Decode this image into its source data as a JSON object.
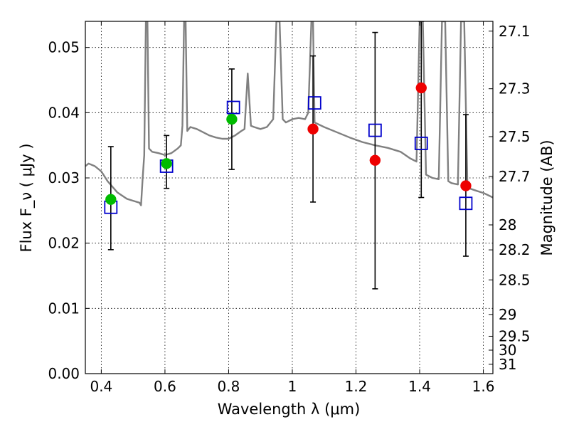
{
  "chart_data": {
    "type": "scatter",
    "xlabel": "Wavelength  λ (μm)",
    "ylabel": "Flux  F_ν  ( μJy )",
    "ylabel_right": "Magnitude (AB)",
    "xlim": [
      0.35,
      1.63
    ],
    "ylim": [
      0.0,
      0.054
    ],
    "grid": true,
    "x_ticks": [
      {
        "v": 0.4,
        "label": "0.4"
      },
      {
        "v": 0.6,
        "label": "0.6"
      },
      {
        "v": 0.8,
        "label": "0.8"
      },
      {
        "v": 1.0,
        "label": "1"
      },
      {
        "v": 1.2,
        "label": "1.2"
      },
      {
        "v": 1.4,
        "label": "1.4"
      },
      {
        "v": 1.6,
        "label": "1.6"
      }
    ],
    "y_ticks": [
      {
        "v": 0.0,
        "label": "0.00"
      },
      {
        "v": 0.01,
        "label": "0.01"
      },
      {
        "v": 0.02,
        "label": "0.02"
      },
      {
        "v": 0.03,
        "label": "0.03"
      },
      {
        "v": 0.04,
        "label": "0.04"
      },
      {
        "v": 0.05,
        "label": "0.05"
      }
    ],
    "right_ticks": [
      {
        "flux": 0.0525,
        "label": "27.1"
      },
      {
        "flux": 0.04367,
        "label": "27.3"
      },
      {
        "flux": 0.03633,
        "label": "27.5"
      },
      {
        "flux": 0.03022,
        "label": "27.7"
      },
      {
        "flux": 0.0228,
        "label": "28"
      },
      {
        "flux": 0.01897,
        "label": "28.2"
      },
      {
        "flux": 0.01437,
        "label": "28.5"
      },
      {
        "flux": 0.00907,
        "label": "29"
      },
      {
        "flux": 0.00573,
        "label": "29.5"
      },
      {
        "flux": 0.0036,
        "label": "30"
      },
      {
        "flux": 0.00143,
        "label": "31"
      }
    ],
    "model_spectrum": {
      "color": "#808080",
      "points": [
        [
          0.35,
          0.0318
        ],
        [
          0.36,
          0.0322
        ],
        [
          0.38,
          0.0318
        ],
        [
          0.4,
          0.031
        ],
        [
          0.42,
          0.0295
        ],
        [
          0.45,
          0.0278
        ],
        [
          0.48,
          0.0268
        ],
        [
          0.5,
          0.0265
        ],
        [
          0.52,
          0.0262
        ],
        [
          0.525,
          0.0258
        ],
        [
          0.53,
          0.03
        ],
        [
          0.535,
          0.0335
        ],
        [
          0.54,
          0.054
        ],
        [
          0.545,
          0.054
        ],
        [
          0.55,
          0.0345
        ],
        [
          0.56,
          0.034
        ],
        [
          0.58,
          0.0338
        ],
        [
          0.6,
          0.0335
        ],
        [
          0.62,
          0.0338
        ],
        [
          0.64,
          0.0345
        ],
        [
          0.65,
          0.035
        ],
        [
          0.655,
          0.038
        ],
        [
          0.66,
          0.054
        ],
        [
          0.665,
          0.054
        ],
        [
          0.67,
          0.0372
        ],
        [
          0.68,
          0.0378
        ],
        [
          0.7,
          0.0375
        ],
        [
          0.72,
          0.037
        ],
        [
          0.74,
          0.0365
        ],
        [
          0.76,
          0.0362
        ],
        [
          0.78,
          0.036
        ],
        [
          0.8,
          0.036
        ],
        [
          0.82,
          0.0365
        ],
        [
          0.84,
          0.0372
        ],
        [
          0.85,
          0.0375
        ],
        [
          0.86,
          0.046
        ],
        [
          0.87,
          0.038
        ],
        [
          0.88,
          0.0378
        ],
        [
          0.9,
          0.0375
        ],
        [
          0.92,
          0.0378
        ],
        [
          0.94,
          0.039
        ],
        [
          0.95,
          0.054
        ],
        [
          0.96,
          0.054
        ],
        [
          0.97,
          0.039
        ],
        [
          0.98,
          0.0385
        ],
        [
          1.0,
          0.039
        ],
        [
          1.02,
          0.0392
        ],
        [
          1.04,
          0.039
        ],
        [
          1.05,
          0.04
        ],
        [
          1.06,
          0.054
        ],
        [
          1.065,
          0.054
        ],
        [
          1.07,
          0.0385
        ],
        [
          1.1,
          0.0378
        ],
        [
          1.14,
          0.037
        ],
        [
          1.18,
          0.0362
        ],
        [
          1.22,
          0.0355
        ],
        [
          1.26,
          0.035
        ],
        [
          1.3,
          0.0346
        ],
        [
          1.34,
          0.034
        ],
        [
          1.37,
          0.033
        ],
        [
          1.39,
          0.0325
        ],
        [
          1.4,
          0.054
        ],
        [
          1.41,
          0.054
        ],
        [
          1.42,
          0.0305
        ],
        [
          1.44,
          0.03
        ],
        [
          1.46,
          0.0298
        ],
        [
          1.47,
          0.054
        ],
        [
          1.48,
          0.054
        ],
        [
          1.49,
          0.0295
        ],
        [
          1.5,
          0.0292
        ],
        [
          1.52,
          0.029
        ],
        [
          1.53,
          0.054
        ],
        [
          1.54,
          0.054
        ],
        [
          1.55,
          0.0285
        ],
        [
          1.58,
          0.028
        ],
        [
          1.6,
          0.0277
        ],
        [
          1.63,
          0.027
        ]
      ]
    },
    "error_bars": [
      {
        "x": 0.43,
        "low": 0.019,
        "high": 0.0348
      },
      {
        "x": 0.605,
        "low": 0.0284,
        "high": 0.0365
      },
      {
        "x": 0.81,
        "low": 0.0313,
        "high": 0.0467
      },
      {
        "x": 1.065,
        "low": 0.0263,
        "high": 0.0487
      },
      {
        "x": 1.26,
        "low": 0.013,
        "high": 0.0523
      },
      {
        "x": 1.405,
        "low": 0.027,
        "high": 0.054
      },
      {
        "x": 1.545,
        "low": 0.018,
        "high": 0.0397
      }
    ],
    "series": [
      {
        "marker": "square-open",
        "color": "#0000cc",
        "points": [
          {
            "x": 0.43,
            "y": 0.0255
          },
          {
            "x": 0.605,
            "y": 0.0318
          },
          {
            "x": 0.815,
            "y": 0.0408
          },
          {
            "x": 1.07,
            "y": 0.0415
          },
          {
            "x": 1.26,
            "y": 0.0373
          },
          {
            "x": 1.405,
            "y": 0.0353
          },
          {
            "x": 1.545,
            "y": 0.0261
          }
        ]
      },
      {
        "marker": "circle",
        "color": "#00bb00",
        "points": [
          {
            "x": 0.43,
            "y": 0.0267
          },
          {
            "x": 0.605,
            "y": 0.0322
          },
          {
            "x": 0.81,
            "y": 0.039
          }
        ]
      },
      {
        "marker": "circle",
        "color": "#ee0000",
        "points": [
          {
            "x": 1.065,
            "y": 0.0375
          },
          {
            "x": 1.26,
            "y": 0.0327
          },
          {
            "x": 1.405,
            "y": 0.0438
          },
          {
            "x": 1.545,
            "y": 0.0288
          }
        ]
      }
    ]
  }
}
